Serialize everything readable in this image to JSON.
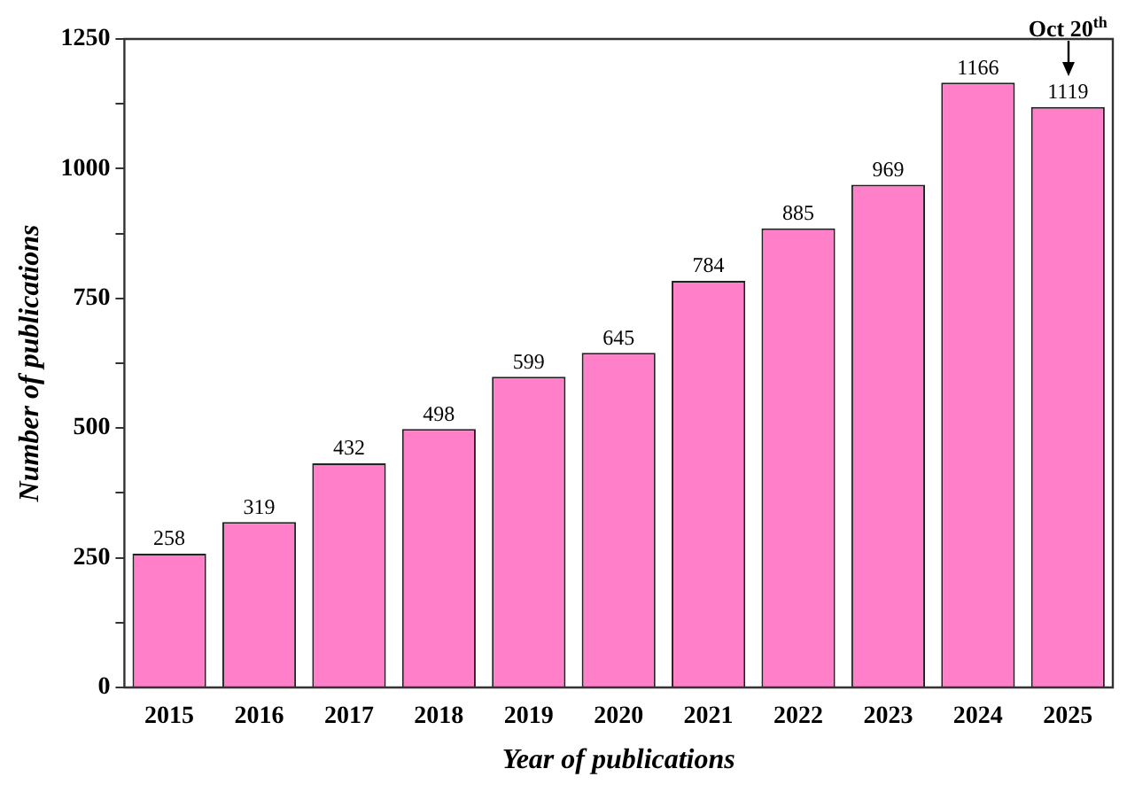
{
  "chart_data": {
    "type": "bar",
    "xlabel": "Year of publications",
    "ylabel": "Number of publications",
    "categories": [
      "2015",
      "2016",
      "2017",
      "2018",
      "2019",
      "2020",
      "2021",
      "2022",
      "2023",
      "2024",
      "2025"
    ],
    "values": [
      258,
      319,
      432,
      498,
      599,
      645,
      784,
      885,
      969,
      1166,
      1119
    ],
    "color": "#ff7fc8",
    "ylim": [
      0,
      1250
    ],
    "yticks": [
      0,
      {
        "value": 125,
        "label": null
      },
      250,
      {
        "value": 375,
        "label": null
      },
      500,
      {
        "value": 625,
        "label": null
      },
      750,
      {
        "value": 875,
        "label": null
      },
      1000,
      {
        "value": 1125,
        "label": null
      },
      1250
    ],
    "grid": false,
    "data_labels": true,
    "annotations": [
      {
        "text": "Oct 20$^{th}$",
        "x": "2025",
        "y": 1119
      }
    ]
  }
}
